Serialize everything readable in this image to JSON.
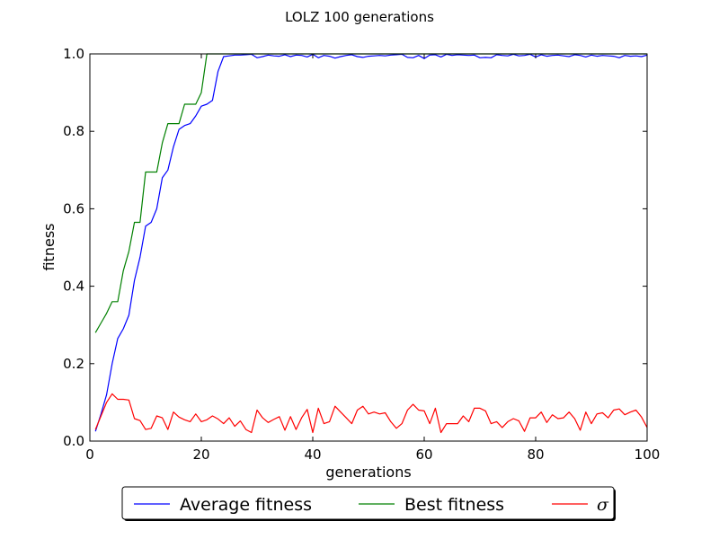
{
  "chart_data": {
    "type": "line",
    "title": "LOLZ 100 generations",
    "xlabel": "generations",
    "ylabel": "fitness",
    "xlim": [
      0,
      100
    ],
    "ylim": [
      0.0,
      1.0
    ],
    "xticks": [
      "0",
      "20",
      "40",
      "60",
      "80",
      "100"
    ],
    "yticks": [
      "0.0",
      "0.2",
      "0.4",
      "0.6",
      "0.8",
      "1.0"
    ],
    "grid": false,
    "legend_position": "bottom-center",
    "series": [
      {
        "name": "Average fitness",
        "color": "#0000ff",
        "x": [
          1,
          2,
          3,
          4,
          5,
          6,
          7,
          8,
          9,
          10,
          11,
          12,
          13,
          14,
          15,
          16,
          17,
          18,
          19,
          20,
          21,
          22,
          23,
          24,
          25,
          26,
          27,
          28,
          29,
          30,
          31,
          32,
          33,
          34,
          35,
          36,
          37,
          38,
          39,
          40,
          41,
          42,
          43,
          44,
          45,
          46,
          47,
          48,
          49,
          50,
          51,
          52,
          53,
          54,
          55,
          56,
          57,
          58,
          59,
          60,
          61,
          62,
          63,
          64,
          65,
          66,
          67,
          68,
          69,
          70,
          71,
          72,
          73,
          74,
          75,
          76,
          77,
          78,
          79,
          80,
          81,
          82,
          83,
          84,
          85,
          86,
          87,
          88,
          89,
          90,
          91,
          92,
          93,
          94,
          95,
          96,
          97,
          98,
          99,
          100
        ],
        "y": [
          0.025,
          0.07,
          0.12,
          0.2,
          0.265,
          0.29,
          0.325,
          0.415,
          0.475,
          0.555,
          0.565,
          0.6,
          0.68,
          0.7,
          0.76,
          0.805,
          0.815,
          0.82,
          0.84,
          0.865,
          0.87,
          0.88,
          0.955,
          0.993,
          0.995,
          0.997,
          0.997,
          0.998,
          0.999,
          0.99,
          0.993,
          0.997,
          0.995,
          0.994,
          0.998,
          0.993,
          0.997,
          0.996,
          0.992,
          0.999,
          0.99,
          0.996,
          0.994,
          0.989,
          0.993,
          0.996,
          0.998,
          0.993,
          0.991,
          0.994,
          0.995,
          0.996,
          0.995,
          0.997,
          0.998,
          0.999,
          0.991,
          0.99,
          0.996,
          0.988,
          0.997,
          0.998,
          0.992,
          0.999,
          0.996,
          0.998,
          0.997,
          0.996,
          0.997,
          0.99,
          0.991,
          0.99,
          0.998,
          0.996,
          0.995,
          0.999,
          0.995,
          0.996,
          0.999,
          0.992,
          0.998,
          0.994,
          0.996,
          0.997,
          0.995,
          0.993,
          0.998,
          0.996,
          0.992,
          0.997,
          0.994,
          0.996,
          0.995,
          0.994,
          0.99,
          0.996,
          0.994,
          0.995,
          0.993,
          0.997
        ]
      },
      {
        "name": "Best fitness",
        "color": "#008000",
        "x": [
          1,
          2,
          3,
          4,
          5,
          6,
          7,
          8,
          9,
          10,
          11,
          12,
          13,
          14,
          15,
          16,
          17,
          18,
          19,
          20,
          21,
          22,
          23,
          24,
          25,
          26,
          27,
          28,
          29,
          30,
          31,
          32,
          33,
          34,
          35,
          36,
          37,
          38,
          39,
          40,
          41,
          42,
          43,
          44,
          45,
          46,
          47,
          48,
          49,
          50,
          51,
          52,
          53,
          54,
          55,
          56,
          57,
          58,
          59,
          60,
          61,
          62,
          63,
          64,
          65,
          66,
          67,
          68,
          69,
          70,
          71,
          72,
          73,
          74,
          75,
          76,
          77,
          78,
          79,
          80,
          81,
          82,
          83,
          84,
          85,
          86,
          87,
          88,
          89,
          90,
          91,
          92,
          93,
          94,
          95,
          96,
          97,
          98,
          99,
          100
        ],
        "y": [
          0.28,
          0.305,
          0.33,
          0.36,
          0.36,
          0.44,
          0.49,
          0.565,
          0.565,
          0.695,
          0.695,
          0.695,
          0.77,
          0.82,
          0.82,
          0.82,
          0.87,
          0.87,
          0.87,
          0.9,
          1.0,
          1.0,
          1.0,
          1.0,
          1.0,
          1.0,
          1.0,
          1.0,
          1.0,
          1.0,
          1.0,
          1.0,
          1.0,
          1.0,
          1.0,
          1.0,
          1.0,
          1.0,
          1.0,
          1.0,
          1.0,
          1.0,
          1.0,
          1.0,
          1.0,
          1.0,
          1.0,
          1.0,
          1.0,
          1.0,
          1.0,
          1.0,
          1.0,
          1.0,
          1.0,
          1.0,
          1.0,
          1.0,
          1.0,
          1.0,
          1.0,
          1.0,
          1.0,
          1.0,
          1.0,
          1.0,
          1.0,
          1.0,
          1.0,
          1.0,
          1.0,
          1.0,
          1.0,
          1.0,
          1.0,
          1.0,
          1.0,
          1.0,
          1.0,
          1.0,
          1.0,
          1.0,
          1.0,
          1.0,
          1.0,
          1.0,
          1.0,
          1.0,
          1.0,
          1.0,
          1.0,
          1.0,
          1.0,
          1.0,
          1.0,
          1.0,
          1.0,
          1.0,
          1.0,
          1.0
        ]
      },
      {
        "name": "σ",
        "color": "#ff0000",
        "x": [
          1,
          2,
          3,
          4,
          5,
          6,
          7,
          8,
          9,
          10,
          11,
          12,
          13,
          14,
          15,
          16,
          17,
          18,
          19,
          20,
          21,
          22,
          23,
          24,
          25,
          26,
          27,
          28,
          29,
          30,
          31,
          32,
          33,
          34,
          35,
          36,
          37,
          38,
          39,
          40,
          41,
          42,
          43,
          44,
          45,
          46,
          47,
          48,
          49,
          50,
          51,
          52,
          53,
          54,
          55,
          56,
          57,
          58,
          59,
          60,
          61,
          62,
          63,
          64,
          65,
          66,
          67,
          68,
          69,
          70,
          71,
          72,
          73,
          74,
          75,
          76,
          77,
          78,
          79,
          80,
          81,
          82,
          83,
          84,
          85,
          86,
          87,
          88,
          89,
          90,
          91,
          92,
          93,
          94,
          95,
          96,
          97,
          98,
          99,
          100
        ],
        "y": [
          0.03,
          0.065,
          0.1,
          0.122,
          0.108,
          0.108,
          0.106,
          0.058,
          0.053,
          0.03,
          0.033,
          0.065,
          0.06,
          0.03,
          0.075,
          0.062,
          0.055,
          0.05,
          0.07,
          0.05,
          0.055,
          0.065,
          0.057,
          0.045,
          0.06,
          0.038,
          0.052,
          0.03,
          0.022,
          0.08,
          0.06,
          0.048,
          0.056,
          0.063,
          0.028,
          0.063,
          0.03,
          0.06,
          0.082,
          0.022,
          0.085,
          0.045,
          0.05,
          0.09,
          0.075,
          0.06,
          0.045,
          0.08,
          0.09,
          0.07,
          0.075,
          0.07,
          0.073,
          0.05,
          0.033,
          0.045,
          0.08,
          0.095,
          0.08,
          0.078,
          0.045,
          0.085,
          0.022,
          0.045,
          0.045,
          0.045,
          0.065,
          0.05,
          0.085,
          0.085,
          0.078,
          0.045,
          0.05,
          0.035,
          0.05,
          0.058,
          0.052,
          0.025,
          0.06,
          0.06,
          0.075,
          0.048,
          0.068,
          0.058,
          0.06,
          0.075,
          0.058,
          0.028,
          0.075,
          0.045,
          0.07,
          0.073,
          0.06,
          0.08,
          0.083,
          0.068,
          0.075,
          0.08,
          0.062,
          0.035
        ]
      }
    ]
  }
}
